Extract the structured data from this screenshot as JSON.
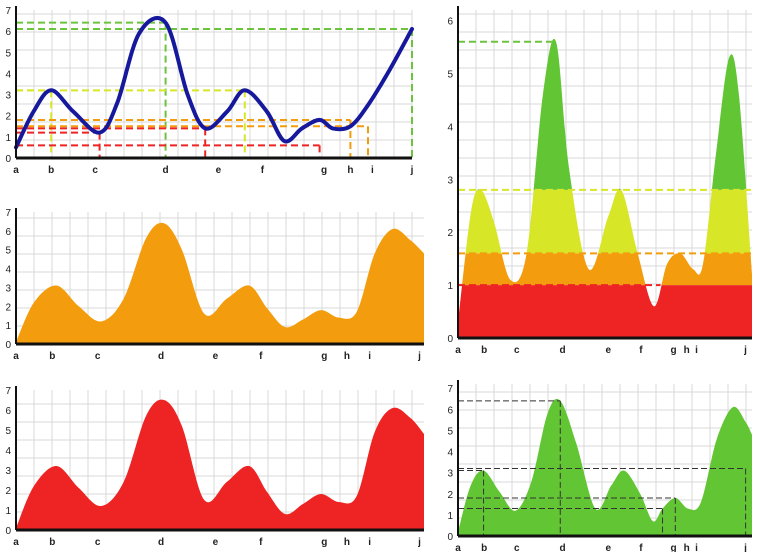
{
  "colors": {
    "grid": "#d9d9d9",
    "axis": "#111111",
    "blue_line": "#17199c",
    "orange": "#f39c0d",
    "red": "#ee2424",
    "green": "#62c534",
    "yellow": "#d7e727",
    "ref_green": "#6cc43e",
    "ref_yellow": "#d7e727",
    "ref_orange": "#f39c0d",
    "ref_red": "#ee2424",
    "ref_dark": "#333333"
  },
  "chart_data": [
    {
      "id": "chart1",
      "type": "line",
      "title": "",
      "xlabel": "",
      "ylabel": "",
      "categories": [
        "a",
        "b",
        "c",
        "d",
        "e",
        "f",
        "g",
        "h",
        "i",
        "j"
      ],
      "x_ticks": [
        "a",
        "b",
        "c",
        "d",
        "e",
        "f",
        "g",
        "h",
        "i",
        "j"
      ],
      "y_ticks": [
        "0",
        "1",
        "2",
        "3",
        "4",
        "5",
        "6",
        "7"
      ],
      "ylim": [
        0,
        7
      ],
      "grid": true,
      "legend": "none",
      "curve_x": [
        0,
        0.4,
        0.8,
        1.3,
        1.9,
        2.3,
        2.8,
        3.4,
        3.9,
        4.3,
        4.8,
        5.2,
        5.7,
        6.1,
        6.5,
        6.9,
        7.2,
        7.6,
        8.0,
        8.5,
        9.0
      ],
      "curve_y": [
        0.5,
        2.2,
        3.2,
        2.2,
        1.2,
        2.6,
        5.9,
        6.4,
        3.0,
        1.4,
        2.2,
        3.2,
        2.2,
        0.8,
        1.4,
        1.8,
        1.4,
        1.5,
        2.5,
        4.2,
        6.1
      ],
      "reference_lines": [
        {
          "y": 6.4,
          "x": 3.4,
          "color": "ref_green"
        },
        {
          "y": 6.1,
          "x": 9.0,
          "color": "ref_green"
        },
        {
          "y": 3.2,
          "x": 0.8,
          "color": "ref_yellow"
        },
        {
          "y": 3.2,
          "x": 5.2,
          "color": "ref_yellow"
        },
        {
          "y": 1.8,
          "x": 7.6,
          "color": "ref_orange"
        },
        {
          "y": 1.5,
          "x": 8.0,
          "color": "ref_orange"
        },
        {
          "y": 1.4,
          "x": 4.3,
          "color": "ref_red"
        },
        {
          "y": 1.2,
          "x": 1.9,
          "color": "ref_red"
        },
        {
          "y": 0.6,
          "x": 6.9,
          "color": "ref_red"
        }
      ]
    },
    {
      "id": "chart2",
      "type": "area",
      "title": "",
      "xlabel": "",
      "ylabel": "",
      "categories": [
        "a",
        "b",
        "c",
        "d",
        "e",
        "f",
        "g",
        "h",
        "i",
        "j"
      ],
      "x_ticks": [
        "a",
        "b",
        "c",
        "d",
        "e",
        "f",
        "g",
        "h",
        "i",
        "j"
      ],
      "y_ticks": [
        "0",
        "1",
        "2",
        "3",
        "4",
        "5",
        "6"
      ],
      "ylim": [
        0,
        6.2
      ],
      "grid": true,
      "legend": "none",
      "curve_x": [
        0,
        0.4,
        0.7,
        1.1,
        1.6,
        2.1,
        2.6,
        3.0,
        3.4,
        4.0,
        4.6,
        5.0,
        5.5,
        6.0,
        6.4,
        6.8,
        7.2,
        7.5,
        7.9,
        8.3,
        8.6,
        9.0
      ],
      "curve_y": [
        0.3,
        2.4,
        2.8,
        2.2,
        1.1,
        1.6,
        4.6,
        5.6,
        3.2,
        1.3,
        2.3,
        2.8,
        1.6,
        0.6,
        1.4,
        1.6,
        1.3,
        1.4,
        3.5,
        5.3,
        4.6,
        1.2
      ],
      "bands": [
        {
          "from": 0,
          "to": 1.0,
          "color": "red"
        },
        {
          "from": 1.0,
          "to": 1.6,
          "color": "orange"
        },
        {
          "from": 1.6,
          "to": 2.8,
          "color": "yellow"
        },
        {
          "from": 2.8,
          "to": 6.2,
          "color": "green"
        }
      ],
      "reference_lines": [
        {
          "y": 5.6,
          "x": 3.0,
          "color": "ref_green"
        },
        {
          "y": 2.8,
          "x": 9.0,
          "color": "ref_yellow"
        },
        {
          "y": 1.6,
          "x": 9.0,
          "color": "ref_orange"
        },
        {
          "y": 1.0,
          "x": 6.2,
          "color": "ref_red"
        }
      ]
    },
    {
      "id": "chart3",
      "type": "area",
      "title": "",
      "xlabel": "",
      "ylabel": "",
      "categories": [
        "a",
        "b",
        "c",
        "d",
        "e",
        "f",
        "g",
        "h",
        "i",
        "j"
      ],
      "x_ticks": [
        "a",
        "b",
        "c",
        "d",
        "e",
        "f",
        "g",
        "h",
        "i",
        "j"
      ],
      "y_ticks": [
        "0",
        "1",
        "2",
        "3",
        "4",
        "5",
        "6",
        "7"
      ],
      "ylim": [
        0,
        7
      ],
      "grid": true,
      "legend": "none",
      "fill": "orange",
      "curve_x": [
        0,
        0.4,
        0.9,
        1.4,
        1.9,
        2.4,
        2.9,
        3.3,
        3.7,
        4.2,
        4.7,
        5.2,
        5.6,
        6.0,
        6.4,
        6.8,
        7.2,
        7.6,
        8.0,
        8.4,
        8.8,
        9.1
      ],
      "curve_y": [
        0.1,
        2.2,
        3.1,
        2.0,
        1.2,
        2.4,
        5.6,
        6.4,
        5.0,
        1.6,
        2.4,
        3.1,
        1.9,
        0.9,
        1.3,
        1.8,
        1.4,
        1.7,
        4.8,
        6.1,
        5.5,
        4.8
      ]
    },
    {
      "id": "chart4",
      "type": "area",
      "title": "",
      "xlabel": "",
      "ylabel": "",
      "categories": [
        "a",
        "b",
        "c",
        "d",
        "e",
        "f",
        "g",
        "h",
        "i",
        "j"
      ],
      "x_ticks": [
        "a",
        "b",
        "c",
        "d",
        "e",
        "f",
        "g",
        "h",
        "i",
        "j"
      ],
      "y_ticks": [
        "0",
        "1",
        "2",
        "3",
        "4",
        "5",
        "6",
        "7"
      ],
      "ylim": [
        0,
        7
      ],
      "grid": true,
      "legend": "none",
      "fill": "red",
      "curve_x": [
        0,
        0.4,
        0.9,
        1.4,
        1.9,
        2.4,
        2.9,
        3.3,
        3.7,
        4.2,
        4.7,
        5.2,
        5.6,
        6.0,
        6.4,
        6.8,
        7.2,
        7.6,
        8.0,
        8.4,
        8.8,
        9.1
      ],
      "curve_y": [
        0.1,
        2.2,
        3.2,
        2.1,
        1.2,
        2.4,
        5.7,
        6.5,
        5.2,
        1.5,
        2.4,
        3.2,
        1.9,
        0.8,
        1.3,
        1.8,
        1.4,
        1.7,
        4.9,
        6.1,
        5.6,
        4.8
      ]
    },
    {
      "id": "chart5",
      "type": "area",
      "title": "",
      "xlabel": "",
      "ylabel": "",
      "categories": [
        "a",
        "b",
        "c",
        "d",
        "e",
        "f",
        "g",
        "h",
        "i",
        "j"
      ],
      "x_ticks": [
        "a",
        "b",
        "c",
        "d",
        "e",
        "f",
        "g",
        "h",
        "i",
        "j"
      ],
      "y_ticks": [
        "0",
        "1",
        "2",
        "3",
        "4",
        "5",
        "6",
        "7"
      ],
      "ylim": [
        0,
        7.2
      ],
      "grid": true,
      "legend": "none",
      "fill": "green",
      "curve_x": [
        0,
        0.4,
        0.8,
        1.3,
        1.8,
        2.3,
        2.8,
        3.2,
        3.7,
        4.3,
        4.8,
        5.2,
        5.7,
        6.1,
        6.4,
        6.8,
        7.2,
        7.6,
        8.1,
        8.6,
        9.0,
        9.2
      ],
      "curve_y": [
        0.2,
        2.4,
        3.1,
        2.1,
        1.2,
        2.6,
        5.8,
        6.4,
        4.4,
        1.3,
        2.4,
        3.1,
        2.0,
        0.7,
        1.3,
        1.8,
        1.3,
        1.6,
        4.6,
        6.1,
        5.4,
        4.8
      ],
      "reference_lines": [
        {
          "y": 6.4,
          "x": 3.2,
          "color": "ref_dark",
          "drop": true
        },
        {
          "y": 3.2,
          "x": 9.0,
          "color": "ref_dark",
          "drop": true
        },
        {
          "y": 3.1,
          "x": 0.8,
          "color": "ref_dark",
          "drop": true
        },
        {
          "y": 1.8,
          "x": 6.8,
          "color": "ref_dark",
          "drop": true
        },
        {
          "y": 1.3,
          "x": 6.4,
          "color": "ref_dark",
          "drop": true
        }
      ]
    }
  ]
}
